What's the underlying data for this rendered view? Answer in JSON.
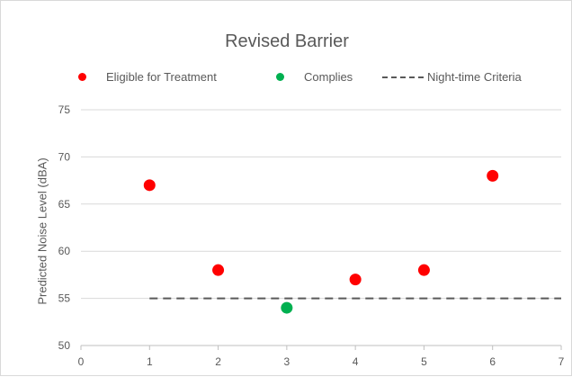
{
  "chart_data": {
    "type": "scatter",
    "title": "Revised Barrier",
    "xlabel": "",
    "ylabel": "Predicted Noise Level (dBA)",
    "xlim": [
      0,
      7
    ],
    "ylim": [
      50,
      75
    ],
    "x_ticks": [
      0,
      1,
      2,
      3,
      4,
      5,
      6,
      7
    ],
    "y_ticks": [
      50,
      55,
      60,
      65,
      70,
      75
    ],
    "grid": "horizontal",
    "legend_position": "top",
    "series": [
      {
        "name": "Eligible for Treatment",
        "color": "#ff0000",
        "points": [
          {
            "x": 1,
            "y": 67
          },
          {
            "x": 2,
            "y": 58
          },
          {
            "x": 4,
            "y": 57
          },
          {
            "x": 5,
            "y": 58
          },
          {
            "x": 6,
            "y": 68
          }
        ]
      },
      {
        "name": "Complies",
        "color": "#00b050",
        "points": [
          {
            "x": 3,
            "y": 54
          }
        ]
      }
    ],
    "reference_lines": [
      {
        "name": "Night-time Criteria",
        "style": "dashed",
        "color": "#595959",
        "y": 55,
        "x_start": 1,
        "x_end": 7
      }
    ]
  }
}
